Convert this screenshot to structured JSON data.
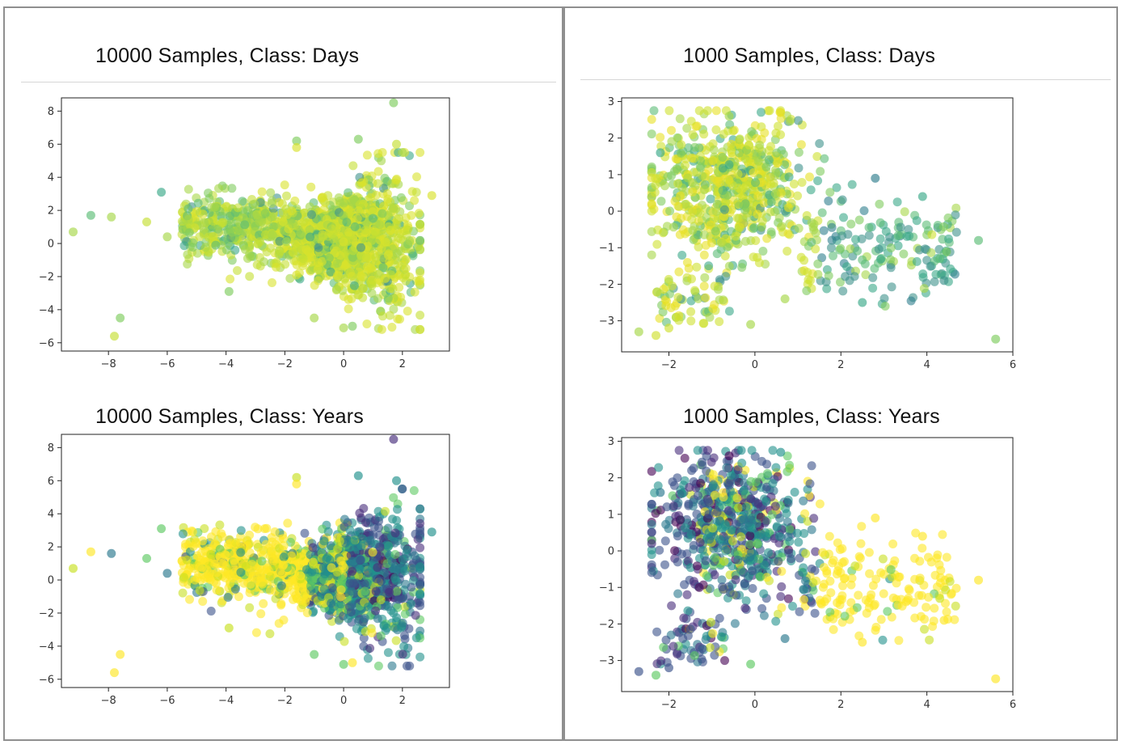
{
  "panels": [
    {
      "id": "p1",
      "title": "10000 Samples, Class: Days",
      "coloring": "days",
      "n": 1700,
      "xticks": [
        -8,
        -6,
        -4,
        -2,
        0,
        2
      ],
      "yticks": [
        -6,
        -4,
        -2,
        0,
        2,
        4,
        6,
        8
      ],
      "xlim": [
        -9.6,
        3.6
      ],
      "ylim": [
        -6.5,
        8.8
      ],
      "palette": [
        "#d8e22b",
        "#c5df32",
        "#a6d748",
        "#7ecc5e",
        "#5cbd76",
        "#3aa988",
        "#3f928c"
      ],
      "palette_weights": [
        40,
        22,
        18,
        10,
        5,
        3,
        2
      ]
    },
    {
      "id": "p2",
      "title": "1000 Samples, Class: Days",
      "coloring": "days",
      "n": 900,
      "xticks": [
        -2,
        0,
        2,
        4,
        6
      ],
      "yticks": [
        -3,
        -2,
        -1,
        0,
        1,
        2,
        3
      ],
      "xlim": [
        -3.1,
        6.0
      ],
      "ylim": [
        -3.85,
        3.1
      ],
      "palette": [
        "#e8e124",
        "#cfe12f",
        "#a6d748",
        "#7ecc5e",
        "#5cbd76",
        "#3aa988",
        "#3f928c",
        "#2f7e8e"
      ],
      "palette_weights": [
        15,
        20,
        18,
        15,
        10,
        9,
        8,
        5
      ]
    },
    {
      "id": "p3",
      "title": "10000 Samples, Class: Years",
      "coloring": "years",
      "n": 1700,
      "xticks": [
        -8,
        -6,
        -4,
        -2,
        0,
        2
      ],
      "yticks": [
        -6,
        -4,
        -2,
        0,
        2,
        4,
        6,
        8
      ],
      "xlim": [
        -9.6,
        3.6
      ],
      "ylim": [
        -6.5,
        8.8
      ],
      "palette": [
        "#fde725",
        "#c8e020",
        "#5ec962",
        "#21918c",
        "#2a788e",
        "#3b528b",
        "#472d7b",
        "#440154"
      ],
      "palette_weights": [
        30,
        10,
        12,
        18,
        10,
        12,
        6,
        2
      ]
    },
    {
      "id": "p4",
      "title": "1000 Samples, Class: Years",
      "coloring": "years",
      "n": 900,
      "xticks": [
        -2,
        0,
        2,
        4,
        6
      ],
      "yticks": [
        -3,
        -2,
        -1,
        0,
        1,
        2,
        3
      ],
      "xlim": [
        -3.1,
        6.0
      ],
      "ylim": [
        -3.85,
        3.1
      ],
      "palette": [
        "#fde725",
        "#c8e020",
        "#5ec962",
        "#21918c",
        "#2a788e",
        "#3b528b",
        "#472d7b",
        "#440154"
      ],
      "palette_weights": [
        20,
        8,
        10,
        20,
        12,
        16,
        10,
        4
      ]
    }
  ],
  "chart_data": [
    {
      "type": "scatter",
      "title": "10000 Samples, Class: Days",
      "xlim": [
        -9.6,
        3.6
      ],
      "ylim": [
        -6.5,
        8.8
      ],
      "xlabel": "",
      "ylabel": "",
      "grid": false,
      "legend": "none",
      "series": [
        {
          "points": [
            [
              -9.2,
              0.7
            ],
            [
              -8.6,
              1.7
            ],
            [
              -7.9,
              1.6
            ],
            [
              -7.6,
              -4.5
            ],
            [
              -7.8,
              -5.6
            ],
            [
              -6.7,
              1.3
            ],
            [
              -6.2,
              3.1
            ],
            [
              -6.0,
              0.4
            ],
            [
              -1.6,
              6.2
            ],
            [
              -1.6,
              5.8
            ],
            [
              1.7,
              8.5
            ],
            [
              1.8,
              6.0
            ],
            [
              0.5,
              6.3
            ],
            [
              2.0,
              5.5
            ],
            [
              3.0,
              2.9
            ],
            [
              0.0,
              -5.1
            ],
            [
              0.3,
              -5.0
            ],
            [
              -1.0,
              -4.5
            ],
            [
              -3.9,
              -2.9
            ],
            [
              0.0,
              0.1
            ]
          ]
        }
      ]
    },
    {
      "type": "scatter",
      "title": "1000 Samples, Class: Days",
      "xlim": [
        -3.1,
        6.0
      ],
      "ylim": [
        -3.85,
        3.1
      ],
      "xlabel": "",
      "ylabel": "",
      "grid": false,
      "legend": "none",
      "series": [
        {
          "points": [
            [
              -2.7,
              -3.3
            ],
            [
              -2.3,
              -3.4
            ],
            [
              -2.0,
              -3.2
            ],
            [
              -2.4,
              0.2
            ],
            [
              -2.2,
              1.6
            ],
            [
              0.6,
              2.7
            ],
            [
              -0.6,
              2.6
            ],
            [
              5.6,
              -3.5
            ],
            [
              5.2,
              -0.8
            ],
            [
              4.4,
              -1.9
            ],
            [
              4.3,
              -1.3
            ],
            [
              2.5,
              -2.5
            ],
            [
              0.7,
              -2.4
            ],
            [
              -0.1,
              -3.1
            ],
            [
              3.9,
              0.4
            ],
            [
              2.8,
              0.9
            ]
          ]
        }
      ]
    },
    {
      "type": "scatter",
      "title": "10000 Samples, Class: Years",
      "xlim": [
        -9.6,
        3.6
      ],
      "ylim": [
        -6.5,
        8.8
      ],
      "xlabel": "",
      "ylabel": "",
      "grid": false,
      "legend": "none",
      "series": [
        {
          "points": [
            [
              -9.2,
              0.7
            ],
            [
              -8.6,
              1.7
            ],
            [
              -7.9,
              1.6
            ],
            [
              -7.6,
              -4.5
            ],
            [
              -7.8,
              -5.6
            ],
            [
              -6.7,
              1.3
            ],
            [
              -6.2,
              3.1
            ],
            [
              -6.0,
              0.4
            ],
            [
              -1.6,
              6.2
            ],
            [
              -1.6,
              5.8
            ],
            [
              1.7,
              8.5
            ],
            [
              1.8,
              6.0
            ],
            [
              0.5,
              6.3
            ],
            [
              2.0,
              5.5
            ],
            [
              3.0,
              2.9
            ],
            [
              0.0,
              -5.1
            ],
            [
              0.3,
              -5.0
            ],
            [
              -1.0,
              -4.5
            ],
            [
              -3.9,
              -2.9
            ]
          ]
        }
      ]
    },
    {
      "type": "scatter",
      "title": "1000 Samples, Class: Years",
      "xlim": [
        -3.1,
        6.0
      ],
      "ylim": [
        -3.85,
        3.1
      ],
      "xlabel": "",
      "ylabel": "",
      "grid": false,
      "legend": "none",
      "series": [
        {
          "points": [
            [
              -2.7,
              -3.3
            ],
            [
              -2.3,
              -3.4
            ],
            [
              -2.0,
              -3.2
            ],
            [
              -2.4,
              0.2
            ],
            [
              -2.2,
              1.6
            ],
            [
              0.6,
              2.7
            ],
            [
              -0.6,
              2.6
            ],
            [
              5.6,
              -3.5
            ],
            [
              5.2,
              -0.8
            ],
            [
              4.4,
              -1.9
            ],
            [
              4.3,
              -1.3
            ],
            [
              2.5,
              -2.5
            ],
            [
              0.7,
              -2.4
            ],
            [
              -0.1,
              -3.1
            ],
            [
              3.9,
              0.4
            ],
            [
              2.8,
              0.9
            ]
          ]
        }
      ]
    }
  ]
}
